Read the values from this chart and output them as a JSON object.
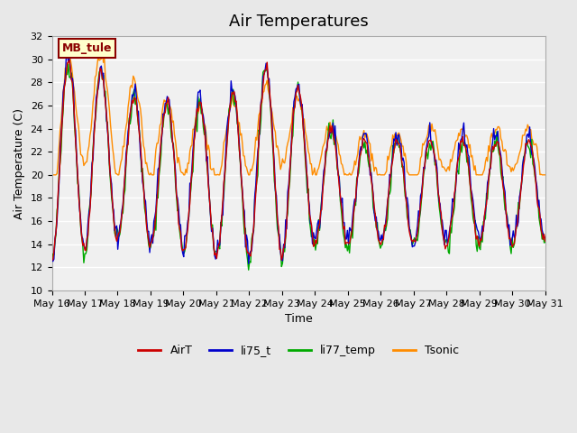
{
  "title": "Air Temperatures",
  "xlabel": "Time",
  "ylabel": "Air Temperature (C)",
  "ylim": [
    10,
    32
  ],
  "yticks": [
    10,
    12,
    14,
    16,
    18,
    20,
    22,
    24,
    26,
    28,
    30,
    32
  ],
  "annotation_text": "MB_tule",
  "annotation_color": "#8B0000",
  "annotation_bg": "#FFFFCC",
  "annotation_border": "#8B0000",
  "series_colors": {
    "AirT": "#CC0000",
    "li75_t": "#0000CC",
    "li77_temp": "#00AA00",
    "Tsonic": "#FF8C00"
  },
  "bg_color": "#E8E8E8",
  "axes_bg": "#F0F0F0",
  "grid_color": "#FFFFFF",
  "x_labels": [
    "May 16",
    "May 17",
    "May 18",
    "May 19",
    "May 20",
    "May 21",
    "May 22",
    "May 23",
    "May 24",
    "May 25",
    "May 26",
    "May 27",
    "May 28",
    "May 29",
    "May 30",
    "May 31"
  ],
  "num_points": 480,
  "seed": 42,
  "xlim": [
    0,
    15
  ]
}
